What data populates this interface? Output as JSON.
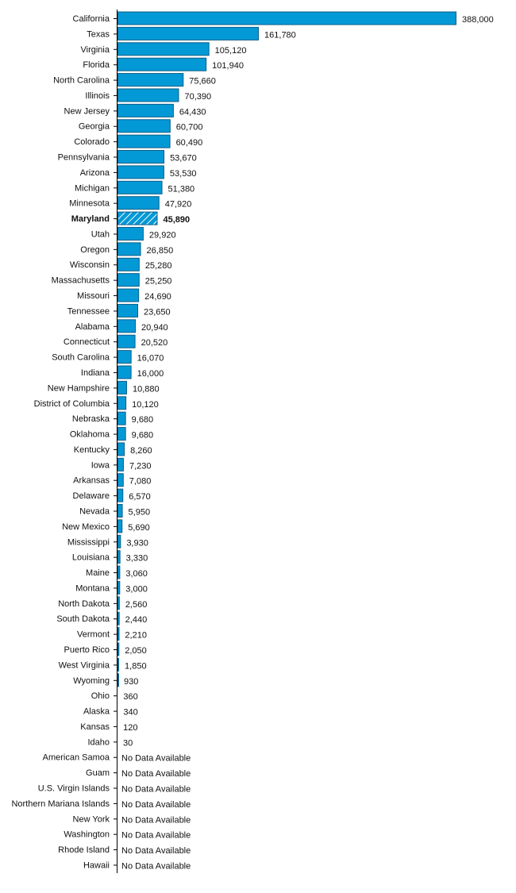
{
  "chart_data": {
    "type": "bar",
    "orientation": "horizontal",
    "title": "",
    "xlabel": "",
    "ylabel": "",
    "xlim": [
      0,
      388000
    ],
    "grid": false,
    "bar_color": "#0399d6",
    "bar_border_color": "#0b5d86",
    "highlight": "Maryland",
    "missing_label": "No Data Available",
    "categories": [
      "California",
      "Texas",
      "Virginia",
      "Florida",
      "North Carolina",
      "Illinois",
      "New Jersey",
      "Georgia",
      "Colorado",
      "Pennsylvania",
      "Arizona",
      "Michigan",
      "Minnesota",
      "Maryland",
      "Utah",
      "Oregon",
      "Wisconsin",
      "Massachusetts",
      "Missouri",
      "Tennessee",
      "Alabama",
      "Connecticut",
      "South Carolina",
      "Indiana",
      "New Hampshire",
      "District of Columbia",
      "Nebraska",
      "Oklahoma",
      "Kentucky",
      "Iowa",
      "Arkansas",
      "Delaware",
      "Nevada",
      "New Mexico",
      "Mississippi",
      "Louisiana",
      "Maine",
      "Montana",
      "North Dakota",
      "South Dakota",
      "Vermont",
      "Puerto Rico",
      "West Virginia",
      "Wyoming",
      "Ohio",
      "Alaska",
      "Kansas",
      "Idaho",
      "American Samoa",
      "Guam",
      "U.S. Virgin Islands",
      "Northern Mariana Islands",
      "New York",
      "Washington",
      "Rhode Island",
      "Hawaii"
    ],
    "values": [
      388000,
      161780,
      105120,
      101940,
      75660,
      70390,
      64430,
      60700,
      60490,
      53670,
      53530,
      51380,
      47920,
      45890,
      29920,
      26850,
      25280,
      25250,
      24690,
      23650,
      20940,
      20520,
      16070,
      16000,
      10880,
      10120,
      9680,
      9680,
      8260,
      7230,
      7080,
      6570,
      5950,
      5690,
      3930,
      3330,
      3060,
      3000,
      2560,
      2440,
      2210,
      2050,
      1850,
      930,
      360,
      340,
      120,
      30,
      null,
      null,
      null,
      null,
      null,
      null,
      null,
      null
    ]
  }
}
